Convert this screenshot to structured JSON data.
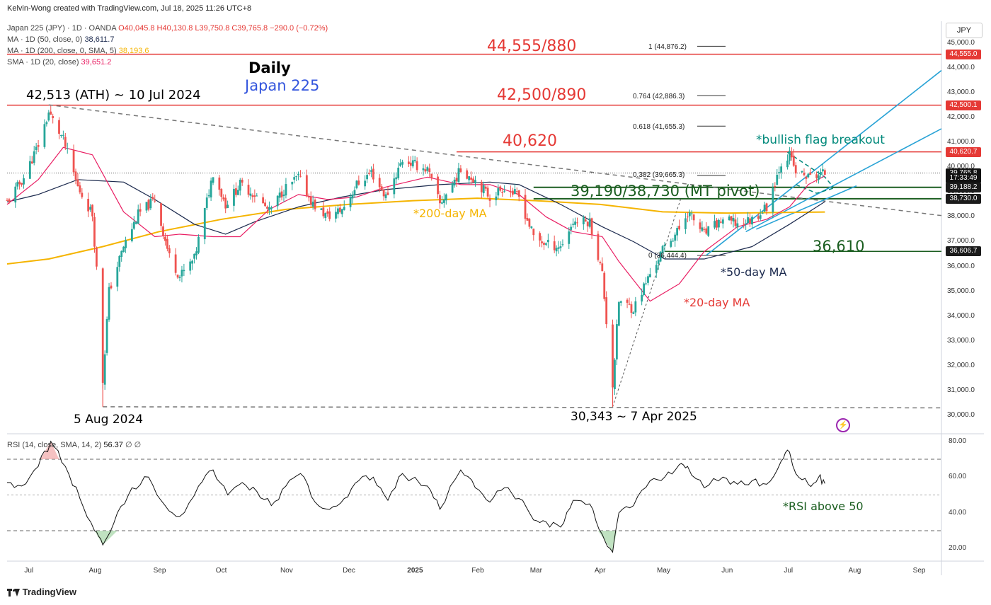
{
  "header": {
    "creator": "Kelvin-Wong created with TradingView.com, Jul 18, 2025 11:26 UTC+8",
    "symbol_line_prefix": "Japan 225 (JPY) · 1D · OANDA",
    "ohlc": "O40,045.8  H40,130.8  L39,750.8  C39,765.8  −290.0 (−0.72%)",
    "ma50_label": "MA · 1D (50, close, 0)",
    "ma50_value": "38,611.7",
    "ma200_label": "MA · 1D (200, close, 0, SMA, 5)",
    "ma200_value": "38,193.6",
    "sma20_label": "SMA · 1D (20, close)",
    "sma20_value": "39,651.2"
  },
  "currency": "JPY",
  "brand": "TradingView",
  "colors": {
    "up": "#26a69a",
    "down": "#ef5350",
    "ma200": "#f5b400",
    "ma50": "#1c2a4e",
    "ma20": "#e91e63",
    "level_red": "#e53935",
    "level_green": "#1b5e20",
    "channel": "#29a3d6"
  },
  "annotations": {
    "daily": "Daily",
    "instrument": "Japan 225",
    "ath": "42,513 (ATH) ~ 10 Jul 2024",
    "aug_low": "5 Aug 2024",
    "apr_low": "30,343 ~ 7 Apr 2025",
    "r1": "44,555/880",
    "r2": "42,500/890",
    "r3": "40,620",
    "pivot": "39,190/38,730 (MT pivot)",
    "s1": "36,610",
    "flag": "*bullish flag breakout",
    "ma200_note": "*200-day MA",
    "ma50_note": "*50-day MA",
    "ma20_note": "*20-day MA",
    "rsi_note": "*RSI above 50"
  },
  "fib": [
    {
      "ratio": "1",
      "label": "1 (44,876.2)",
      "price": 44876.2
    },
    {
      "ratio": "0.764",
      "label": "0.764 (42,886.3)",
      "price": 42886.3
    },
    {
      "ratio": "0.618",
      "label": "0.618 (41,655.3)",
      "price": 41655.3
    },
    {
      "ratio": "0.382",
      "label": "0.382 (39,665.3)",
      "price": 39665.3
    },
    {
      "ratio": "0",
      "label": "0 (36,444.4)",
      "price": 36444.4
    }
  ],
  "badges": [
    {
      "label": "44,555.0",
      "price": 44555,
      "color": "#e53935"
    },
    {
      "label": "42,500.1",
      "price": 42500,
      "color": "#e53935"
    },
    {
      "label": "40,620.7",
      "price": 40620,
      "color": "#e53935"
    },
    {
      "label": "39,765.8",
      "price": 39765.8,
      "color": "#111111"
    },
    {
      "label": "17:33:49",
      "price": 39540,
      "color": "#111111"
    },
    {
      "label": "39,188.2",
      "price": 39188,
      "color": "#1b1b1b"
    },
    {
      "label": "38,730.0",
      "price": 38730,
      "color": "#1b1b1b"
    },
    {
      "label": "36,606.7",
      "price": 36606,
      "color": "#1b1b1b"
    }
  ],
  "rsi": {
    "label": "RSI (14, close, SMA, 14, 2)",
    "value": "56.37",
    "extra": "∅ ∅",
    "ticks": [
      "80.00",
      "60.00",
      "40.00",
      "20.00"
    ]
  },
  "chart_data": {
    "type": "candlestick",
    "title": "Japan 225 (JPY) · 1D · OANDA",
    "y_ticks": [
      "45,000.0",
      "44,000.0",
      "43,000.0",
      "42,000.0",
      "41,000.0",
      "40,000.0",
      "39,000.0",
      "38,000.0",
      "37,000.0",
      "36,000.0",
      "35,000.0",
      "34,000.0",
      "33,000.0",
      "32,000.0",
      "31,000.0",
      "30,000.0"
    ],
    "ylim": [
      29800,
      45300
    ],
    "x_ticks": [
      "Jul",
      "Aug",
      "Sep",
      "Oct",
      "Nov",
      "Dec",
      "2025",
      "Feb",
      "Mar",
      "Apr",
      "May",
      "Jun",
      "Jul",
      "Aug",
      "Sep"
    ],
    "close_path": [
      [
        "2024-06-20",
        38600
      ],
      [
        "2024-06-28",
        39580
      ],
      [
        "2024-07-05",
        40900
      ],
      [
        "2024-07-10",
        42200
      ],
      [
        "2024-07-17",
        41100
      ],
      [
        "2024-07-24",
        39200
      ],
      [
        "2024-07-31",
        38100
      ],
      [
        "2024-08-02",
        35900
      ],
      [
        "2024-08-05",
        31400
      ],
      [
        "2024-08-08",
        35000
      ],
      [
        "2024-08-15",
        36800
      ],
      [
        "2024-08-22",
        38100
      ],
      [
        "2024-08-30",
        38700
      ],
      [
        "2024-09-06",
        36400
      ],
      [
        "2024-09-11",
        35600
      ],
      [
        "2024-09-18",
        36300
      ],
      [
        "2024-09-27",
        39800
      ],
      [
        "2024-10-03",
        38500
      ],
      [
        "2024-10-10",
        39300
      ],
      [
        "2024-10-17",
        38900
      ],
      [
        "2024-10-24",
        38200
      ],
      [
        "2024-10-31",
        39100
      ],
      [
        "2024-11-07",
        39600
      ],
      [
        "2024-11-14",
        38500
      ],
      [
        "2024-11-21",
        38000
      ],
      [
        "2024-11-28",
        38300
      ],
      [
        "2024-12-05",
        39300
      ],
      [
        "2024-12-12",
        39800
      ],
      [
        "2024-12-19",
        38800
      ],
      [
        "2024-12-27",
        40300
      ],
      [
        "2025-01-08",
        39900
      ],
      [
        "2025-01-14",
        38500
      ],
      [
        "2025-01-24",
        39900
      ],
      [
        "2025-01-31",
        39500
      ],
      [
        "2025-02-07",
        38800
      ],
      [
        "2025-02-14",
        39200
      ],
      [
        "2025-02-21",
        38800
      ],
      [
        "2025-02-28",
        37200
      ],
      [
        "2025-03-06",
        36900
      ],
      [
        "2025-03-13",
        36800
      ],
      [
        "2025-03-19",
        37800
      ],
      [
        "2025-03-27",
        37800
      ],
      [
        "2025-04-02",
        35700
      ],
      [
        "2025-04-04",
        33800
      ],
      [
        "2025-04-07",
        31200
      ],
      [
        "2025-04-10",
        34600
      ],
      [
        "2025-04-17",
        34300
      ],
      [
        "2025-04-25",
        35700
      ],
      [
        "2025-05-02",
        36800
      ],
      [
        "2025-05-09",
        37500
      ],
      [
        "2025-05-13",
        38200
      ],
      [
        "2025-05-21",
        37300
      ],
      [
        "2025-05-30",
        37900
      ],
      [
        "2025-06-06",
        37700
      ],
      [
        "2025-06-13",
        37900
      ],
      [
        "2025-06-20",
        38400
      ],
      [
        "2025-06-27",
        40200
      ],
      [
        "2025-07-01",
        40500
      ],
      [
        "2025-07-04",
        39800
      ],
      [
        "2025-07-10",
        39600
      ],
      [
        "2025-07-15",
        39700
      ],
      [
        "2025-07-18",
        39765
      ]
    ],
    "sma20": [
      [
        "2024-06-20",
        38500
      ],
      [
        "2024-07-05",
        39500
      ],
      [
        "2024-07-17",
        40800
      ],
      [
        "2024-07-31",
        40500
      ],
      [
        "2024-08-15",
        38200
      ],
      [
        "2024-08-30",
        37200
      ],
      [
        "2024-09-11",
        37300
      ],
      [
        "2024-09-27",
        37200
      ],
      [
        "2024-10-10",
        37200
      ],
      [
        "2024-10-24",
        38300
      ],
      [
        "2024-11-07",
        38900
      ],
      [
        "2024-11-21",
        38700
      ],
      [
        "2024-12-05",
        38800
      ],
      [
        "2024-12-19",
        39200
      ],
      [
        "2025-01-08",
        39600
      ],
      [
        "2025-01-24",
        39300
      ],
      [
        "2025-02-07",
        39300
      ],
      [
        "2025-02-21",
        38900
      ],
      [
        "2025-03-06",
        38000
      ],
      [
        "2025-03-19",
        37400
      ],
      [
        "2025-04-02",
        37200
      ],
      [
        "2025-04-10",
        36200
      ],
      [
        "2025-04-25",
        34600
      ],
      [
        "2025-05-09",
        35300
      ],
      [
        "2025-05-21",
        36600
      ],
      [
        "2025-06-06",
        37600
      ],
      [
        "2025-06-20",
        37900
      ],
      [
        "2025-07-01",
        38400
      ],
      [
        "2025-07-10",
        39300
      ],
      [
        "2025-07-18",
        39650
      ]
    ],
    "sma50": [
      [
        "2024-06-20",
        38600
      ],
      [
        "2024-07-05",
        38900
      ],
      [
        "2024-07-24",
        39500
      ],
      [
        "2024-08-15",
        39400
      ],
      [
        "2024-08-30",
        38700
      ],
      [
        "2024-09-18",
        37700
      ],
      [
        "2024-10-03",
        37300
      ],
      [
        "2024-10-17",
        37800
      ],
      [
        "2024-11-07",
        38400
      ],
      [
        "2024-11-28",
        38800
      ],
      [
        "2024-12-19",
        39100
      ],
      [
        "2025-01-14",
        39300
      ],
      [
        "2025-02-07",
        39400
      ],
      [
        "2025-02-21",
        39300
      ],
      [
        "2025-03-13",
        38500
      ],
      [
        "2025-04-02",
        37600
      ],
      [
        "2025-04-17",
        37000
      ],
      [
        "2025-05-02",
        36300
      ],
      [
        "2025-05-21",
        36300
      ],
      [
        "2025-06-13",
        36800
      ],
      [
        "2025-07-01",
        37700
      ],
      [
        "2025-07-18",
        38611
      ]
    ],
    "sma200": [
      [
        "2024-06-20",
        36100
      ],
      [
        "2024-07-10",
        36300
      ],
      [
        "2024-08-05",
        36800
      ],
      [
        "2024-09-01",
        37400
      ],
      [
        "2024-10-01",
        37900
      ],
      [
        "2024-11-01",
        38300
      ],
      [
        "2024-12-01",
        38500
      ],
      [
        "2025-01-01",
        38650
      ],
      [
        "2025-02-01",
        38750
      ],
      [
        "2025-03-01",
        38650
      ],
      [
        "2025-04-01",
        38500
      ],
      [
        "2025-05-01",
        38200
      ],
      [
        "2025-06-01",
        38150
      ],
      [
        "2025-07-18",
        38193
      ]
    ],
    "rsi_path": [
      [
        "2024-06-20",
        57
      ],
      [
        "2024-06-27",
        55
      ],
      [
        "2024-07-05",
        66
      ],
      [
        "2024-07-11",
        80
      ],
      [
        "2024-07-18",
        66
      ],
      [
        "2024-07-25",
        48
      ],
      [
        "2024-08-01",
        30
      ],
      [
        "2024-08-05",
        22
      ],
      [
        "2024-08-12",
        40
      ],
      [
        "2024-08-19",
        54
      ],
      [
        "2024-08-27",
        60
      ],
      [
        "2024-09-04",
        44
      ],
      [
        "2024-09-11",
        38
      ],
      [
        "2024-09-20",
        55
      ],
      [
        "2024-09-27",
        64
      ],
      [
        "2024-10-04",
        50
      ],
      [
        "2024-10-11",
        57
      ],
      [
        "2024-10-18",
        52
      ],
      [
        "2024-10-25",
        44
      ],
      [
        "2024-11-01",
        55
      ],
      [
        "2024-11-08",
        62
      ],
      [
        "2024-11-15",
        46
      ],
      [
        "2024-11-22",
        42
      ],
      [
        "2024-11-29",
        48
      ],
      [
        "2024-12-06",
        58
      ],
      [
        "2024-12-13",
        60
      ],
      [
        "2024-12-20",
        47
      ],
      [
        "2024-12-27",
        62
      ],
      [
        "2025-01-08",
        55
      ],
      [
        "2025-01-14",
        42
      ],
      [
        "2025-01-24",
        64
      ],
      [
        "2025-01-31",
        54
      ],
      [
        "2025-02-07",
        46
      ],
      [
        "2025-02-14",
        54
      ],
      [
        "2025-02-21",
        48
      ],
      [
        "2025-02-28",
        36
      ],
      [
        "2025-03-06",
        35
      ],
      [
        "2025-03-13",
        32
      ],
      [
        "2025-03-19",
        47
      ],
      [
        "2025-03-27",
        45
      ],
      [
        "2025-04-02",
        28
      ],
      [
        "2025-04-07",
        18
      ],
      [
        "2025-04-10",
        40
      ],
      [
        "2025-04-17",
        44
      ],
      [
        "2025-04-25",
        58
      ],
      [
        "2025-05-02",
        60
      ],
      [
        "2025-05-09",
        67
      ],
      [
        "2025-05-13",
        66
      ],
      [
        "2025-05-21",
        54
      ],
      [
        "2025-05-30",
        60
      ],
      [
        "2025-06-06",
        56
      ],
      [
        "2025-06-13",
        58
      ],
      [
        "2025-06-20",
        56
      ],
      [
        "2025-06-27",
        69
      ],
      [
        "2025-07-01",
        74
      ],
      [
        "2025-07-04",
        62
      ],
      [
        "2025-07-10",
        56
      ],
      [
        "2025-07-15",
        60
      ],
      [
        "2025-07-18",
        56.4
      ]
    ],
    "rsi_levels": [
      70,
      50,
      30
    ]
  }
}
